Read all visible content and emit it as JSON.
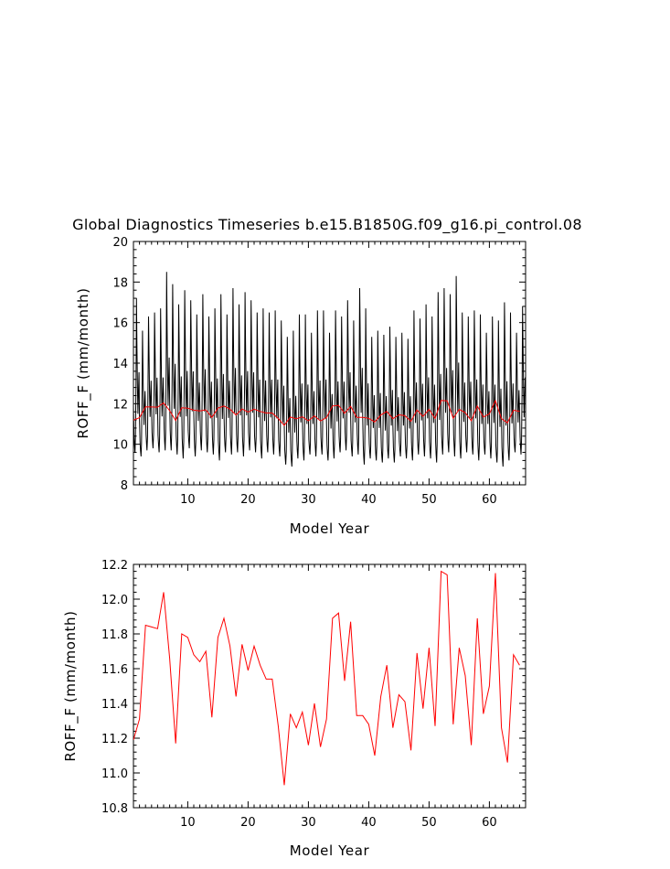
{
  "title": "Global Diagnostics Timeseries b.e15.B1850G.f09_g16.pi_control.08",
  "chart_data": [
    {
      "type": "line",
      "title": "Global Diagnostics Timeseries b.e15.B1850G.f09_g16.pi_control.08",
      "xlabel": "Model Year",
      "ylabel": "ROFF_F (mm/month)",
      "xlim": [
        1,
        66
      ],
      "ylim": [
        8,
        20
      ],
      "xticks": [
        10,
        20,
        30,
        40,
        50,
        60
      ],
      "yticks": [
        8,
        10,
        12,
        14,
        16,
        18,
        20
      ],
      "grid": false,
      "monthly_peaks": [
        17.2,
        15.6,
        16.3,
        16.5,
        16.7,
        18.5,
        17.9,
        16.9,
        17.6,
        17.1,
        16.4,
        17.4,
        16.3,
        16.7,
        17.4,
        16.4,
        17.7,
        16.9,
        17.5,
        17.1,
        16.5,
        16.7,
        16.5,
        16.6,
        16.1,
        15.3,
        15.6,
        16.4,
        16.4,
        15.5,
        16.6,
        16.6,
        15.5,
        16.6,
        16.3,
        17.1,
        16.1,
        17.7,
        16.7,
        15.3,
        15.6,
        15.4,
        15.8,
        15.3,
        15.5,
        15.2,
        16.6,
        16.2,
        16.9,
        16.3,
        17.5,
        17.7,
        17.4,
        18.3,
        16.5,
        16.3,
        16.6,
        16.4,
        15.5,
        16.3,
        16.1,
        17.0,
        16.5,
        15.5,
        16.8
      ],
      "monthly_troughs": [
        9.6,
        9.4,
        9.7,
        9.8,
        9.6,
        9.7,
        9.7,
        9.5,
        9.3,
        9.8,
        9.4,
        9.7,
        9.6,
        9.5,
        9.2,
        9.6,
        9.5,
        9.6,
        9.4,
        9.7,
        9.6,
        9.3,
        9.6,
        9.5,
        9.4,
        9.0,
        8.9,
        9.3,
        9.2,
        9.5,
        9.4,
        9.5,
        9.2,
        9.3,
        9.6,
        9.7,
        9.4,
        9.5,
        9.0,
        9.3,
        9.2,
        9.1,
        9.3,
        9.1,
        9.4,
        9.3,
        9.2,
        9.5,
        9.4,
        9.3,
        9.1,
        9.5,
        9.6,
        9.4,
        9.3,
        9.6,
        9.5,
        9.2,
        9.5,
        9.3,
        9.1,
        8.9,
        9.2,
        9.6,
        9.5
      ],
      "series": [
        {
          "color": "#ff0000",
          "values": [
            11.19,
            11.31,
            11.85,
            11.84,
            11.83,
            12.04,
            11.66,
            11.17,
            11.8,
            11.78,
            11.68,
            11.64,
            11.7,
            11.32,
            11.78,
            11.89,
            11.73,
            11.44,
            11.74,
            11.59,
            11.73,
            11.62,
            11.54,
            11.54,
            11.27,
            10.93,
            11.34,
            11.26,
            11.35,
            11.16,
            11.4,
            11.15,
            11.31,
            11.89,
            11.92,
            11.53,
            11.87,
            11.33,
            11.33,
            11.28,
            11.1,
            11.44,
            11.62,
            11.26,
            11.45,
            11.41,
            11.13,
            11.69,
            11.37,
            11.72,
            11.27,
            12.16,
            12.14,
            11.28,
            11.72,
            11.56,
            11.16,
            11.89,
            11.34,
            11.5,
            12.15,
            11.26,
            11.06,
            11.68,
            11.62
          ]
        }
      ]
    },
    {
      "type": "line",
      "xlabel": "Model Year",
      "ylabel": "ROFF_F (mm/month)",
      "xlim": [
        1,
        66
      ],
      "ylim": [
        10.8,
        12.2
      ],
      "xticks": [
        10,
        20,
        30,
        40,
        50,
        60
      ],
      "yticks": [
        "10.8",
        "11.0",
        "11.2",
        "11.4",
        "11.6",
        "11.8",
        "12.0",
        "12.2"
      ],
      "grid": false,
      "series": [
        {
          "color": "#ff0000",
          "values": [
            11.19,
            11.31,
            11.85,
            11.84,
            11.83,
            12.04,
            11.66,
            11.17,
            11.8,
            11.78,
            11.68,
            11.64,
            11.7,
            11.32,
            11.78,
            11.89,
            11.73,
            11.44,
            11.74,
            11.59,
            11.73,
            11.62,
            11.54,
            11.54,
            11.27,
            10.93,
            11.34,
            11.26,
            11.35,
            11.16,
            11.4,
            11.15,
            11.31,
            11.89,
            11.92,
            11.53,
            11.87,
            11.33,
            11.33,
            11.28,
            11.1,
            11.44,
            11.62,
            11.26,
            11.45,
            11.41,
            11.13,
            11.69,
            11.37,
            11.72,
            11.27,
            12.16,
            12.14,
            11.28,
            11.72,
            11.56,
            11.16,
            11.89,
            11.34,
            11.5,
            12.15,
            11.26,
            11.06,
            11.68,
            11.62
          ]
        }
      ]
    }
  ]
}
